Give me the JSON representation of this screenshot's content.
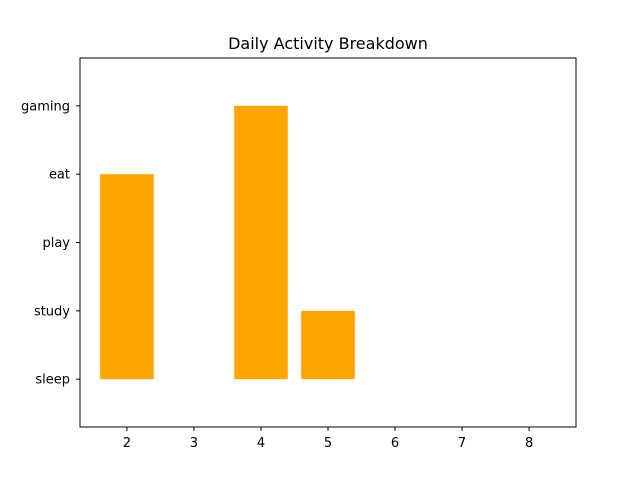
{
  "chart_data": {
    "type": "bar",
    "title": "Daily Activity Breakdown",
    "xlabel": "",
    "ylabel": "",
    "x_ticks": [
      "2",
      "3",
      "4",
      "5",
      "6",
      "7",
      "8"
    ],
    "y_categories": [
      "sleep",
      "study",
      "play",
      "eat",
      "gaming"
    ],
    "xlim": [
      1.3,
      8.7
    ],
    "ylim_category_index": [
      -0.7,
      4.7
    ],
    "bars": [
      {
        "x": 2,
        "bottom": "sleep",
        "top": "eat"
      },
      {
        "x": 4,
        "bottom": "sleep",
        "top": "gaming"
      },
      {
        "x": 5,
        "bottom": "sleep",
        "top": "study"
      }
    ],
    "bar_width": 0.8,
    "bar_color": "#ffa500",
    "grid": false,
    "legend": "none"
  }
}
